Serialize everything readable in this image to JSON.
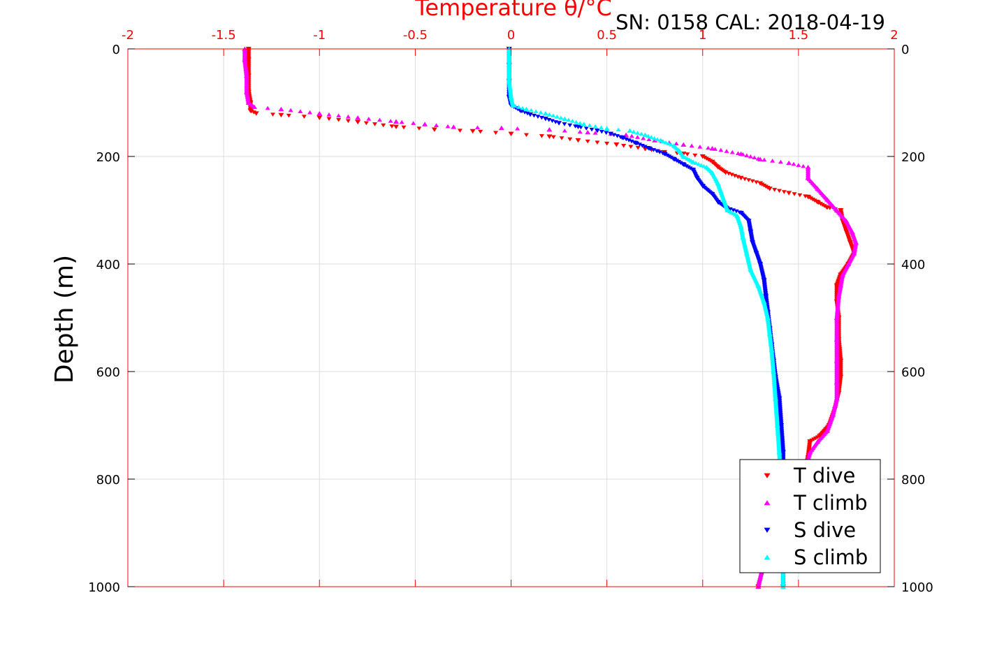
{
  "chart_data": {
    "type": "scatter",
    "title": "Temperature θ/°C",
    "subtitle": "SN: 0158  CAL: 2018-04-19",
    "ylabel": "Depth (m)",
    "xlim": [
      -2,
      2
    ],
    "ylim": [
      0,
      1000
    ],
    "y_reversed": true,
    "x_axis_position": "top",
    "x_ticks": [
      "-2",
      "-1.5",
      "-1",
      "-0.5",
      "0",
      "0.5",
      "1",
      "1.5",
      "2"
    ],
    "y_ticks": [
      "0",
      "200",
      "400",
      "600",
      "800",
      "1000"
    ],
    "grid": true,
    "legend_position": "bottom-right",
    "colors": {
      "axis": "#ff0000",
      "grid": "#dddddd"
    },
    "series": [
      {
        "name": "T dive",
        "color": "#ff0000",
        "marker": "triangle-down",
        "points": [
          [
            -1.37,
            0
          ],
          [
            -1.37,
            20
          ],
          [
            -1.37,
            50
          ],
          [
            -1.37,
            80
          ],
          [
            -1.36,
            100
          ],
          [
            -1.36,
            115
          ],
          [
            -1.33,
            120
          ],
          [
            -1.2,
            123
          ],
          [
            -1.0,
            128
          ],
          [
            -0.8,
            136
          ],
          [
            -0.6,
            145
          ],
          [
            -0.4,
            150
          ],
          [
            -0.2,
            153
          ],
          [
            0.0,
            158
          ],
          [
            0.2,
            163
          ],
          [
            0.35,
            170
          ],
          [
            0.55,
            178
          ],
          [
            0.7,
            186
          ],
          [
            0.8,
            192
          ],
          [
            0.9,
            195
          ],
          [
            1.0,
            200
          ],
          [
            1.05,
            210
          ],
          [
            1.08,
            220
          ],
          [
            1.12,
            230
          ],
          [
            1.2,
            240
          ],
          [
            1.3,
            250
          ],
          [
            1.35,
            260
          ],
          [
            1.45,
            268
          ],
          [
            1.55,
            275
          ],
          [
            1.6,
            285
          ],
          [
            1.65,
            295
          ],
          [
            1.72,
            300
          ],
          [
            1.73,
            320
          ],
          [
            1.75,
            340
          ],
          [
            1.77,
            360
          ],
          [
            1.79,
            380
          ],
          [
            1.76,
            400
          ],
          [
            1.72,
            420
          ],
          [
            1.7,
            440
          ],
          [
            1.7,
            470
          ],
          [
            1.71,
            500
          ],
          [
            1.71,
            540
          ],
          [
            1.72,
            580
          ],
          [
            1.72,
            610
          ],
          [
            1.71,
            640
          ],
          [
            1.69,
            670
          ],
          [
            1.66,
            700
          ],
          [
            1.61,
            720
          ],
          [
            1.56,
            730
          ],
          [
            1.55,
            760
          ],
          [
            1.52,
            800
          ],
          [
            1.47,
            850
          ],
          [
            1.4,
            900
          ],
          [
            1.33,
            950
          ],
          [
            1.29,
            1000
          ]
        ]
      },
      {
        "name": "T climb",
        "color": "#ff00ff",
        "marker": "triangle-up",
        "points": [
          [
            -1.39,
            0
          ],
          [
            -1.39,
            20
          ],
          [
            -1.38,
            50
          ],
          [
            -1.38,
            80
          ],
          [
            -1.37,
            100
          ],
          [
            -1.34,
            108
          ],
          [
            -1.2,
            112
          ],
          [
            -1.0,
            120
          ],
          [
            -0.8,
            128
          ],
          [
            -0.6,
            135
          ],
          [
            -0.45,
            140
          ],
          [
            -0.3,
            145
          ],
          [
            -0.05,
            147
          ],
          [
            0.2,
            150
          ],
          [
            0.4,
            155
          ],
          [
            0.6,
            160
          ],
          [
            0.75,
            170
          ],
          [
            0.9,
            178
          ],
          [
            1.05,
            185
          ],
          [
            1.2,
            195
          ],
          [
            1.3,
            205
          ],
          [
            1.45,
            212
          ],
          [
            1.55,
            220
          ],
          [
            1.55,
            240
          ],
          [
            1.6,
            260
          ],
          [
            1.65,
            280
          ],
          [
            1.7,
            300
          ],
          [
            1.75,
            320
          ],
          [
            1.78,
            340
          ],
          [
            1.8,
            360
          ],
          [
            1.79,
            380
          ],
          [
            1.76,
            400
          ],
          [
            1.73,
            420
          ],
          [
            1.72,
            440
          ],
          [
            1.71,
            460
          ],
          [
            1.7,
            500
          ],
          [
            1.7,
            540
          ],
          [
            1.7,
            580
          ],
          [
            1.7,
            620
          ],
          [
            1.7,
            650
          ],
          [
            1.68,
            680
          ],
          [
            1.65,
            710
          ],
          [
            1.6,
            730
          ],
          [
            1.56,
            750
          ],
          [
            1.52,
            800
          ],
          [
            1.46,
            850
          ],
          [
            1.39,
            900
          ],
          [
            1.32,
            950
          ],
          [
            1.29,
            1000
          ]
        ]
      },
      {
        "name": "S dive",
        "color": "#0000ff",
        "marker": "triangle-down",
        "points": [
          [
            -0.01,
            0
          ],
          [
            -0.01,
            30
          ],
          [
            -0.01,
            60
          ],
          [
            -0.01,
            90
          ],
          [
            0.0,
            105
          ],
          [
            0.05,
            115
          ],
          [
            0.1,
            122
          ],
          [
            0.18,
            130
          ],
          [
            0.25,
            138
          ],
          [
            0.35,
            145
          ],
          [
            0.45,
            152
          ],
          [
            0.52,
            158
          ],
          [
            0.58,
            165
          ],
          [
            0.65,
            175
          ],
          [
            0.72,
            185
          ],
          [
            0.8,
            195
          ],
          [
            0.85,
            205
          ],
          [
            0.9,
            215
          ],
          [
            0.95,
            225
          ],
          [
            0.97,
            240
          ],
          [
            1.0,
            255
          ],
          [
            1.05,
            270
          ],
          [
            1.08,
            285
          ],
          [
            1.12,
            295
          ],
          [
            1.2,
            305
          ],
          [
            1.24,
            320
          ],
          [
            1.25,
            340
          ],
          [
            1.26,
            360
          ],
          [
            1.28,
            380
          ],
          [
            1.3,
            400
          ],
          [
            1.32,
            430
          ],
          [
            1.33,
            460
          ],
          [
            1.34,
            490
          ],
          [
            1.35,
            520
          ],
          [
            1.36,
            550
          ],
          [
            1.37,
            580
          ],
          [
            1.38,
            610
          ],
          [
            1.4,
            650
          ],
          [
            1.41,
            700
          ],
          [
            1.42,
            750
          ],
          [
            1.42,
            800
          ],
          [
            1.42,
            850
          ],
          [
            1.42,
            900
          ],
          [
            1.42,
            950
          ],
          [
            1.42,
            1000
          ]
        ]
      },
      {
        "name": "S climb",
        "color": "#00ffff",
        "marker": "triangle-up",
        "points": [
          [
            -0.01,
            0
          ],
          [
            -0.01,
            30
          ],
          [
            -0.01,
            60
          ],
          [
            0.0,
            90
          ],
          [
            0.01,
            105
          ],
          [
            0.08,
            112
          ],
          [
            0.18,
            120
          ],
          [
            0.28,
            130
          ],
          [
            0.38,
            140
          ],
          [
            0.5,
            148
          ],
          [
            0.62,
            152
          ],
          [
            0.7,
            160
          ],
          [
            0.78,
            170
          ],
          [
            0.85,
            180
          ],
          [
            0.88,
            190
          ],
          [
            0.9,
            200
          ],
          [
            0.95,
            210
          ],
          [
            1.02,
            220
          ],
          [
            1.05,
            230
          ],
          [
            1.08,
            250
          ],
          [
            1.11,
            280
          ],
          [
            1.13,
            300
          ],
          [
            1.18,
            310
          ],
          [
            1.2,
            330
          ],
          [
            1.21,
            350
          ],
          [
            1.23,
            380
          ],
          [
            1.25,
            410
          ],
          [
            1.29,
            440
          ],
          [
            1.32,
            470
          ],
          [
            1.34,
            500
          ],
          [
            1.35,
            530
          ],
          [
            1.36,
            560
          ],
          [
            1.37,
            600
          ],
          [
            1.38,
            650
          ],
          [
            1.39,
            700
          ],
          [
            1.4,
            750
          ],
          [
            1.41,
            800
          ],
          [
            1.41,
            850
          ],
          [
            1.41,
            900
          ],
          [
            1.42,
            950
          ],
          [
            1.42,
            1000
          ]
        ]
      }
    ]
  }
}
